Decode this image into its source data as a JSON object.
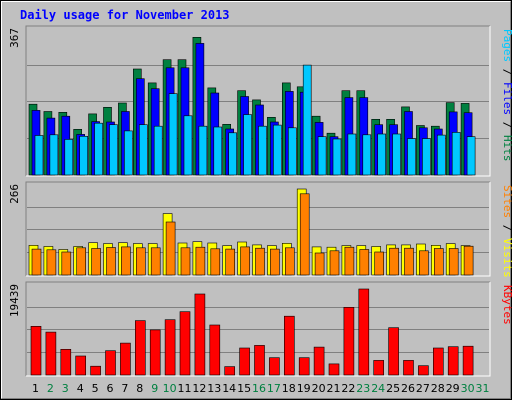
{
  "chart_data": [
    {
      "type": "bar",
      "title": "Daily usage for November 2013",
      "panel": "hits-files-pages",
      "ymax_label": "367",
      "ylim": [
        0,
        367
      ],
      "legend": [
        {
          "text": "Pages",
          "color": "#00c8ff"
        },
        {
          "text": " / ",
          "color": "#000000"
        },
        {
          "text": "Files",
          "color": "#0000ff"
        },
        {
          "text": " / ",
          "color": "#000000"
        },
        {
          "text": "Hits",
          "color": "#008040"
        }
      ],
      "categories": [
        "1",
        "2",
        "3",
        "4",
        "5",
        "6",
        "7",
        "8",
        "9",
        "10",
        "11",
        "12",
        "13",
        "14",
        "15",
        "16",
        "17",
        "18",
        "19",
        "20",
        "21",
        "22",
        "23",
        "24",
        "25",
        "26",
        "27",
        "28",
        "29",
        "30",
        "31"
      ],
      "weekend_days": [
        "2",
        "3",
        "9",
        "10",
        "16",
        "17",
        "23",
        "24",
        "30",
        "31"
      ],
      "series": [
        {
          "name": "Hits",
          "color": "#008040",
          "values": [
            183,
            164,
            162,
            118,
            158,
            175,
            186,
            274,
            238,
            298,
            298,
            356,
            225,
            131,
            218,
            194,
            149,
            238,
            228,
            152,
            108,
            218,
            218,
            144,
            144,
            176,
            128,
            126,
            187,
            185,
            null
          ]
        },
        {
          "name": "Files",
          "color": "#0000ff",
          "values": [
            167,
            147,
            152,
            105,
            138,
            137,
            164,
            249,
            223,
            277,
            277,
            340,
            212,
            119,
            203,
            181,
            137,
            216,
            214,
            136,
            99,
            200,
            200,
            130,
            130,
            164,
            122,
            119,
            163,
            161,
            null
          ]
        },
        {
          "name": "Pages",
          "color": "#00c8ff",
          "values": [
            102,
            104,
            92,
            100,
            134,
            130,
            114,
            130,
            126,
            210,
            153,
            126,
            124,
            109,
            156,
            126,
            129,
            122,
            284,
            99,
            93,
            106,
            104,
            106,
            106,
            94,
            94,
            103,
            110,
            99,
            null
          ]
        }
      ]
    },
    {
      "type": "bar",
      "panel": "visits-sites",
      "ymax_label": "266",
      "ylim": [
        0,
        266
      ],
      "legend": [
        {
          "text": "Sites",
          "color": "#ff8000"
        },
        {
          "text": " / ",
          "color": "#000000"
        },
        {
          "text": "Visits",
          "color": "#ffff00"
        }
      ],
      "series": [
        {
          "name": "Visits",
          "color": "#ffff00",
          "values": [
            92,
            88,
            79,
            88,
            100,
            97,
            100,
            97,
            97,
            190,
            99,
            103,
            99,
            91,
            102,
            93,
            91,
            98,
            266,
            87,
            86,
            91,
            91,
            88,
            93,
            93,
            96,
            92,
            97,
            91,
            null
          ]
        },
        {
          "name": "Sites",
          "color": "#ff8000",
          "values": [
            80,
            78,
            71,
            84,
            82,
            85,
            87,
            84,
            84,
            164,
            84,
            86,
            81,
            80,
            87,
            83,
            80,
            84,
            251,
            68,
            75,
            86,
            79,
            71,
            83,
            83,
            75,
            82,
            82,
            89,
            null
          ]
        }
      ]
    },
    {
      "type": "bar",
      "panel": "kbytes",
      "ymax_label": "19439",
      "ylim": [
        0,
        19439
      ],
      "legend": [
        {
          "text": "KBytes",
          "color": "#ff0000"
        }
      ],
      "series": [
        {
          "name": "KBytes",
          "color": "#ff0000",
          "values": [
            11000,
            9700,
            5800,
            4300,
            2000,
            5500,
            7200,
            12300,
            10200,
            12500,
            14300,
            18300,
            11300,
            1900,
            6100,
            6700,
            3900,
            13300,
            3900,
            6300,
            2500,
            15300,
            19439,
            3300,
            10700,
            3300,
            2100,
            6100,
            6400,
            6500,
            null
          ]
        }
      ]
    }
  ],
  "colors": {
    "background": "#c0c0c0",
    "plot_bg": "#c0c0c0",
    "title_color": "#0000ff",
    "weekday_label": "#000000",
    "weekend_label": "#008040",
    "grid": "#808080"
  }
}
